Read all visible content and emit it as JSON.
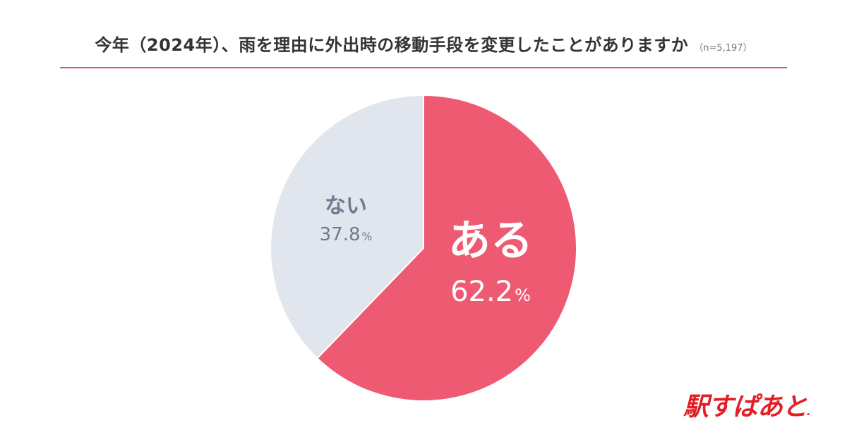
{
  "title": "今年（2024年）、雨を理由に外出時の移動手段を変更したことがありますか",
  "sample_note": "（n=5,197）",
  "colors": {
    "accent": "#e8506e",
    "aru": "#ef5a73",
    "nai": "#e1e5ee",
    "logo": "#e41e26"
  },
  "chart_data": {
    "type": "pie",
    "slices": [
      {
        "label": "ある",
        "value": 62.2,
        "display": "62.2",
        "unit": "%",
        "color": "#ef5a73"
      },
      {
        "label": "ない",
        "value": 37.8,
        "display": "37.8",
        "unit": "%",
        "color": "#e1e5ee"
      }
    ]
  },
  "logo": {
    "text": "駅すぱあと",
    "mark": "."
  }
}
